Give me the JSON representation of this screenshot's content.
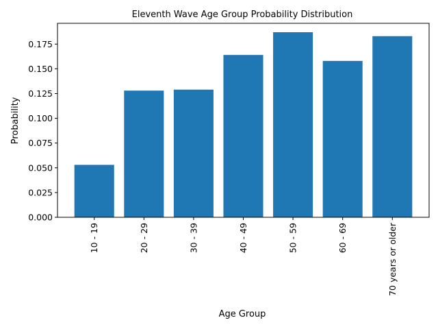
{
  "chart_data": {
    "type": "bar",
    "title": "Eleventh Wave Age Group Probability Distribution",
    "xlabel": "Age Group",
    "ylabel": "Probability",
    "categories": [
      "10 - 19",
      "20 - 29",
      "30 - 39",
      "40 - 49",
      "50 - 59",
      "60 - 69",
      "70 years or older"
    ],
    "values": [
      0.053,
      0.128,
      0.129,
      0.164,
      0.187,
      0.158,
      0.183
    ],
    "ylim": [
      0,
      0.196
    ],
    "yticks": [
      0.0,
      0.025,
      0.05,
      0.075,
      0.1,
      0.125,
      0.15,
      0.175
    ],
    "ytick_labels": [
      "0.000",
      "0.025",
      "0.050",
      "0.075",
      "0.100",
      "0.125",
      "0.150",
      "0.175"
    ],
    "bar_color": "#1f77b4",
    "grid": false,
    "legend": "none"
  }
}
